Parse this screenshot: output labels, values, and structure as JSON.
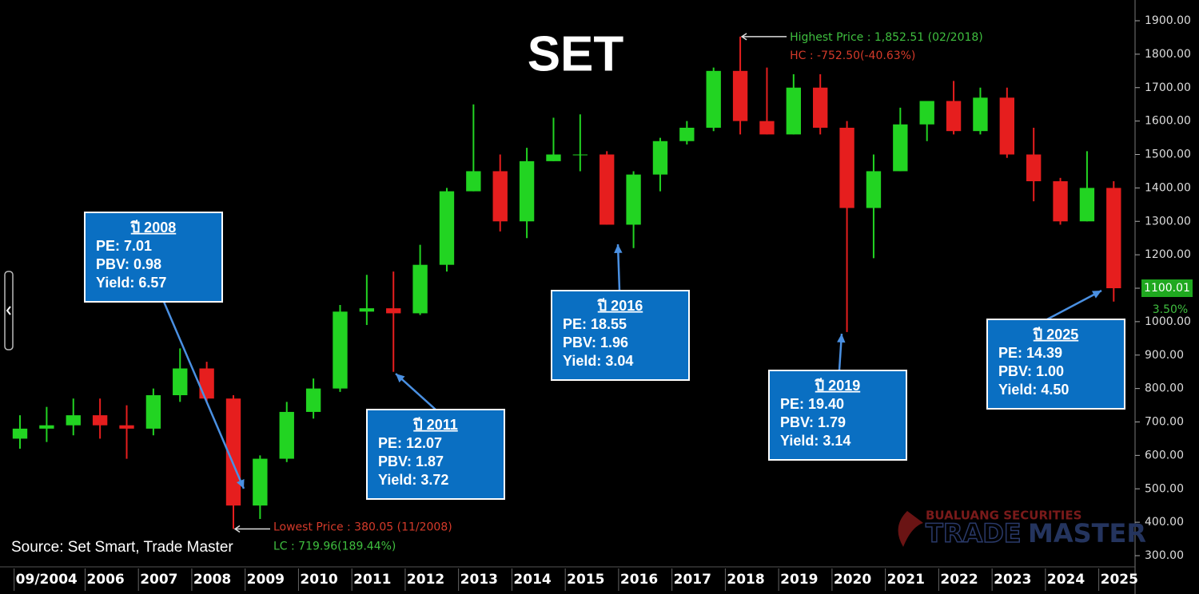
{
  "chart_data": {
    "type": "candlestick",
    "title": "SET",
    "x": [
      2004.75,
      2005.25,
      2005.75,
      2006.25,
      2006.75,
      2007.25,
      2007.75,
      2008.25,
      2008.75,
      2009.25,
      2009.75,
      2010.25,
      2010.75,
      2011.25,
      2011.75,
      2012.25,
      2012.75,
      2013.25,
      2013.75,
      2014.25,
      2014.75,
      2015.25,
      2015.75,
      2016.25,
      2016.75,
      2017.25,
      2017.75,
      2018.25,
      2018.75,
      2019.25,
      2019.75,
      2020.25,
      2020.75,
      2021.25,
      2021.75,
      2022.25,
      2022.75,
      2023.25,
      2023.75,
      2024.25,
      2024.75,
      2025.25
    ],
    "open": [
      650,
      680,
      690,
      720,
      690,
      680,
      780,
      860,
      770,
      450,
      590,
      730,
      800,
      1030,
      1040,
      1025,
      1170,
      1390,
      1450,
      1300,
      1480,
      1500,
      1500,
      1290,
      1440,
      1540,
      1580,
      1750,
      1600,
      1560,
      1700,
      1580,
      1340,
      1450,
      1590,
      1660,
      1570,
      1670,
      1500,
      1420,
      1300,
      1400
    ],
    "high": [
      720,
      745,
      770,
      770,
      750,
      800,
      920,
      880,
      780,
      600,
      760,
      830,
      1050,
      1140,
      1150,
      1230,
      1400,
      1650,
      1500,
      1520,
      1610,
      1620,
      1510,
      1450,
      1550,
      1600,
      1760,
      1852.51,
      1760,
      1740,
      1740,
      1600,
      1500,
      1640,
      1660,
      1720,
      1700,
      1700,
      1580,
      1430,
      1510,
      1420
    ],
    "low": [
      620,
      640,
      660,
      650,
      590,
      660,
      760,
      760,
      380.05,
      410,
      580,
      710,
      790,
      990,
      850,
      1020,
      1150,
      1390,
      1270,
      1250,
      1480,
      1450,
      1290,
      1220,
      1390,
      1530,
      1570,
      1560,
      1560,
      1560,
      1560,
      969,
      1190,
      1450,
      1540,
      1560,
      1560,
      1490,
      1360,
      1290,
      1300,
      1060
    ],
    "close": [
      680,
      690,
      720,
      690,
      680,
      780,
      860,
      770,
      450,
      590,
      730,
      800,
      1030,
      1040,
      1025,
      1170,
      1390,
      1450,
      1300,
      1480,
      1500,
      1500,
      1290,
      1440,
      1540,
      1580,
      1750,
      1600,
      1560,
      1700,
      1580,
      1340,
      1450,
      1590,
      1660,
      1570,
      1670,
      1500,
      1420,
      1300,
      1400,
      1100.01
    ],
    "up_color": "#22d422",
    "down_color": "#e61e1e",
    "xlim": [
      2004.6,
      2025.65
    ],
    "xticks": [
      {
        "value": 2004.67,
        "label": "09/2004"
      },
      2006,
      2007,
      2008,
      2009,
      2010,
      2011,
      2012,
      2013,
      2014,
      2015,
      2016,
      2017,
      2018,
      2019,
      2020,
      2021,
      2022,
      2023,
      2024,
      2025
    ],
    "ylim": [
      300,
      1900
    ],
    "yticks": [
      {
        "value": 300,
        "label": "300.00"
      },
      {
        "value": 400,
        "label": "400.00"
      },
      {
        "value": 500,
        "label": "500.00"
      },
      {
        "value": 600,
        "label": "600.00"
      },
      {
        "value": 700,
        "label": "700.00"
      },
      {
        "value": 800,
        "label": "800.00"
      },
      {
        "value": 900,
        "label": "900.00"
      },
      {
        "value": 1000,
        "label": "1000.00"
      },
      {
        "value": 1100,
        "label": "1100.00"
      },
      {
        "value": 1200,
        "label": "1200.00"
      },
      {
        "value": 1300,
        "label": "1300.00"
      },
      {
        "value": 1400,
        "label": "1400.00"
      },
      {
        "value": 1500,
        "label": "1500.00"
      },
      {
        "value": 1600,
        "label": "1600.00"
      },
      {
        "value": 1700,
        "label": "1700.00"
      },
      {
        "value": 1800,
        "label": "1800.00"
      },
      {
        "value": 1900,
        "label": "1900.00"
      }
    ],
    "last_price": {
      "value": 1100.01,
      "label": "1100.01",
      "change": "3.50%"
    },
    "highest": {
      "text": "Highest Price : 1,852.51 (02/2018)",
      "change": "HC : -752.50(-40.63%)"
    },
    "lowest": {
      "text": "Lowest Price : 380.05 (11/2008)",
      "change": "LC : 719.96(189.44%)"
    },
    "annotations": [
      {
        "title": "ปี 2008",
        "lines": [
          "PE: 7.01",
          "PBV: 0.98",
          "Yield: 6.57"
        ]
      },
      {
        "title": "ปี 2011",
        "lines": [
          "PE: 12.07",
          "PBV: 1.87",
          "Yield: 3.72"
        ]
      },
      {
        "title": "ปี 2016",
        "lines": [
          "PE: 18.55",
          "PBV: 1.96",
          "Yield: 3.04"
        ]
      },
      {
        "title": "ปี 2019",
        "lines": [
          "PE: 19.40",
          "PBV: 1.79",
          "Yield: 3.14"
        ]
      },
      {
        "title": "ปี 2025",
        "lines": [
          "PE: 14.39",
          "PBV: 1.00",
          "Yield: 4.50"
        ]
      }
    ],
    "source": "Source: Set Smart, Trade Master",
    "watermark": {
      "company": "BUALUANG SECURITIES",
      "brand1": "TRADE",
      "brand2": "MASTER"
    }
  }
}
